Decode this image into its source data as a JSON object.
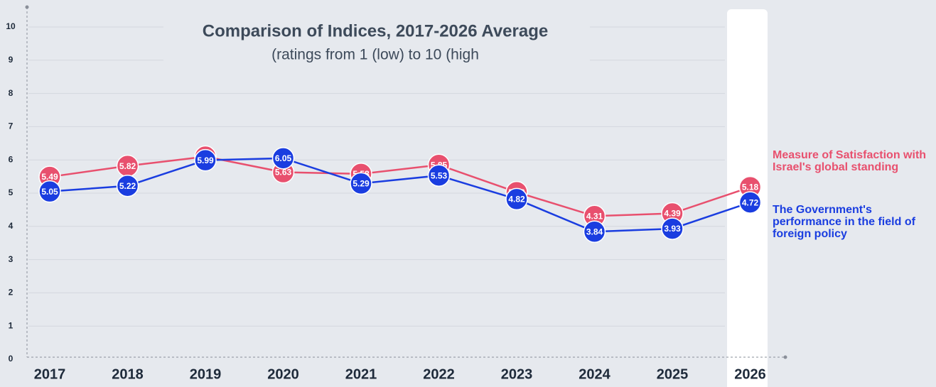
{
  "chart_data": {
    "type": "line",
    "title": "Comparison of Indices, 2017-2026 Average",
    "subtitle": "(ratings from 1 (low) to 10 (high",
    "categories": [
      "2017",
      "2018",
      "2019",
      "2020",
      "2021",
      "2022",
      "2023",
      "2024",
      "2025",
      "2026"
    ],
    "series": [
      {
        "name": "Measure of Satisfaction with Israel's global standing",
        "color": "#e8506e",
        "values": [
          5.49,
          5.82,
          6.1,
          5.63,
          5.58,
          5.85,
          5.03,
          4.31,
          4.39,
          5.18
        ],
        "value_labels": [
          "5.49",
          "5.82",
          "6.10",
          "5.63",
          "5.58",
          "5.85",
          "5.03",
          "4.31",
          "4.39",
          "5.18"
        ]
      },
      {
        "name": "The Government's performance in the field of foreign policy",
        "color": "#1a3de0",
        "values": [
          5.05,
          5.22,
          5.99,
          6.05,
          5.29,
          5.53,
          4.82,
          3.84,
          3.93,
          4.72
        ],
        "value_labels": [
          "5.05",
          "5.22",
          "5.99",
          "6.05",
          "5.29",
          "5.53",
          "4.82",
          "3.84",
          "3.93",
          "4.72"
        ]
      }
    ],
    "ylim": [
      0,
      10
    ],
    "yticks": [
      0,
      1,
      2,
      3,
      4,
      5,
      6,
      7,
      8,
      9,
      10
    ],
    "grid": true,
    "legend": "right"
  }
}
